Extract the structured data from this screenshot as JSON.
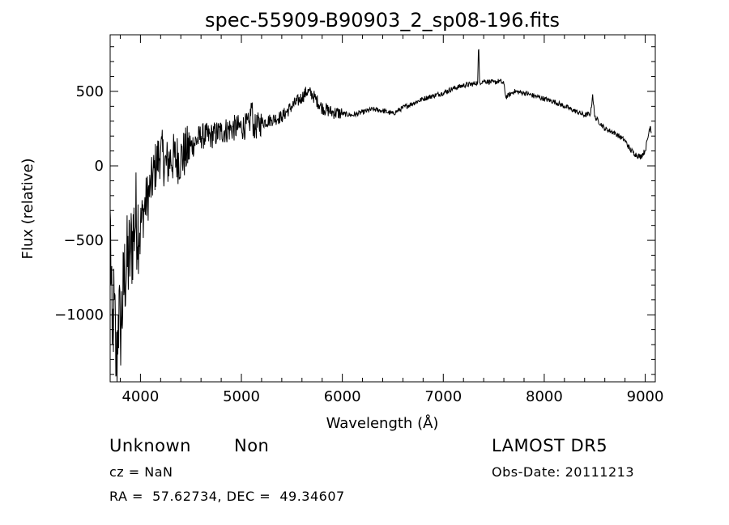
{
  "chart_data": {
    "type": "line",
    "title": "spec-55909-B90903_2_sp08-196.fits",
    "xlabel": "Wavelength (Å)",
    "ylabel": "Flux (relative)",
    "xlim": [
      3700,
      9100
    ],
    "ylim": [
      -1450,
      880
    ],
    "x_ticks": [
      4000,
      5000,
      6000,
      7000,
      8000,
      9000
    ],
    "x_tick_labels": [
      "4000",
      "5000",
      "6000",
      "7000",
      "8000",
      "9000"
    ],
    "y_ticks": [
      -1000,
      -500,
      0,
      500
    ],
    "y_tick_labels": [
      "−1000",
      "−500",
      "0",
      "500"
    ],
    "grid": false,
    "series": [
      {
        "x": [
          3700,
          3720,
          3740,
          3760,
          3780,
          3800,
          3850,
          3900,
          3950,
          4000,
          4050,
          4100,
          4150,
          4200,
          4250,
          4300,
          4400,
          4500,
          4600,
          4700,
          4800,
          4900,
          5000,
          5080,
          5100,
          5120,
          5200,
          5300,
          5400,
          5500,
          5600,
          5650,
          5700,
          5800,
          5900,
          6000,
          6100,
          6200,
          6300,
          6400,
          6500,
          6600,
          6700,
          6800,
          6900,
          7000,
          7100,
          7200,
          7300,
          7340,
          7350,
          7360,
          7400,
          7500,
          7560,
          7600,
          7620,
          7700,
          7800,
          7900,
          8000,
          8100,
          8200,
          8300,
          8400,
          8460,
          8480,
          8500,
          8550,
          8600,
          8700,
          8800,
          8850,
          8900,
          8950,
          9000,
          9030,
          9050,
          9060
        ],
        "y": [
          -300,
          -1200,
          -900,
          -1400,
          -1000,
          -1100,
          -700,
          -600,
          -350,
          -400,
          -250,
          -150,
          0,
          100,
          0,
          50,
          50,
          130,
          200,
          200,
          230,
          250,
          260,
          270,
          420,
          250,
          290,
          310,
          330,
          400,
          460,
          500,
          480,
          390,
          360,
          350,
          340,
          360,
          380,
          370,
          350,
          390,
          420,
          450,
          470,
          490,
          520,
          540,
          550,
          560,
          820,
          560,
          570,
          560,
          570,
          550,
          460,
          500,
          490,
          470,
          450,
          430,
          400,
          370,
          340,
          350,
          480,
          330,
          290,
          250,
          220,
          170,
          110,
          80,
          60,
          100,
          200,
          280,
          220
        ]
      }
    ]
  },
  "info": {
    "class_label": "Unknown",
    "subclass_label": "Non",
    "survey": "LAMOST DR5",
    "cz": "cz = NaN",
    "obs_date": "Obs-Date: 20111213",
    "radec": "RA =  57.62734, DEC =  49.34607"
  }
}
